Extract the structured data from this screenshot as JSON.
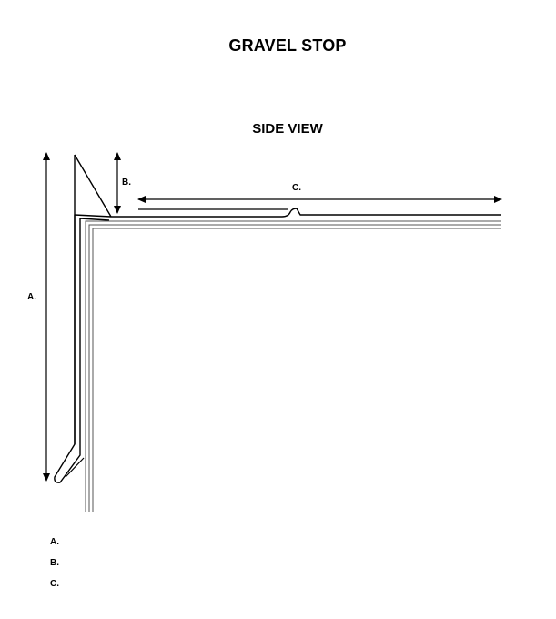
{
  "title": "GRAVEL STOP",
  "subtitle": "SIDE VIEW",
  "dimension_labels": {
    "a": "A.",
    "b": "B.",
    "c": "C."
  },
  "legend": [
    {
      "label": "A."
    },
    {
      "label": "B."
    },
    {
      "label": "C."
    }
  ]
}
